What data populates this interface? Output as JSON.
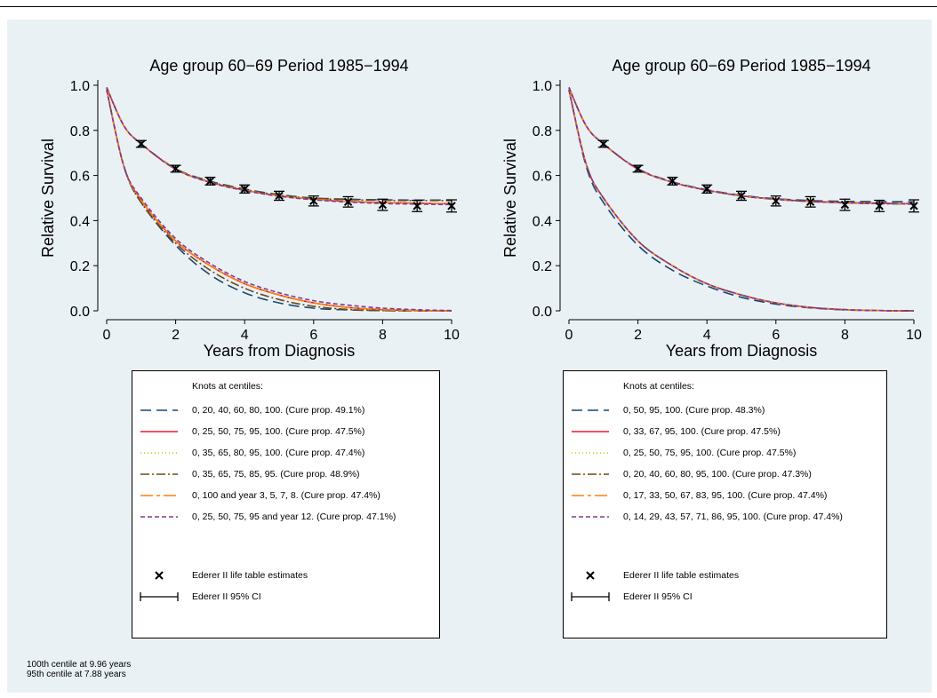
{
  "chart_data": [
    {
      "type": "line",
      "title": "Age group 60−69 Period 1985−1994",
      "xlabel": "Years from Diagnosis",
      "ylabel": "Relative Survival",
      "xlim": [
        0,
        10
      ],
      "ylim": [
        0,
        1
      ],
      "xticks": [
        "0",
        "2",
        "4",
        "6",
        "8",
        "10"
      ],
      "yticks": [
        "0.0",
        "0.2",
        "0.4",
        "0.6",
        "0.8",
        "1.0"
      ],
      "grid": false,
      "legend_header": "Knots at centiles:",
      "legend_position": "below",
      "series": [
        {
          "name": "0, 20, 40, 60, 80, 100. (Cure prop. 49.1%)",
          "color": "#1a476f",
          "dash": "12,6",
          "relative_survival": {
            "x": [
              0,
              0.5,
              1,
              2,
              3,
              4,
              5,
              6,
              7,
              8,
              9,
              10
            ],
            "y": [
              0.99,
              0.82,
              0.74,
              0.63,
              0.575,
              0.54,
              0.515,
              0.5,
              0.495,
              0.492,
              0.491,
              0.491
            ]
          },
          "cure_fraction_curve": {
            "x": [
              0,
              0.5,
              1,
              2,
              3,
              4,
              5,
              6,
              7,
              8,
              9,
              10
            ],
            "y": [
              0.98,
              0.64,
              0.48,
              0.29,
              0.16,
              0.08,
              0.035,
              0.012,
              0.004,
              0.001,
              0,
              0
            ]
          }
        },
        {
          "name": "0, 25, 50, 75, 95, 100. (Cure prop. 47.5%)",
          "color": "#e8182c",
          "dash": "none",
          "relative_survival": {
            "x": [
              0,
              0.5,
              1,
              2,
              3,
              4,
              5,
              6,
              7,
              8,
              9,
              10
            ],
            "y": [
              0.99,
              0.82,
              0.74,
              0.628,
              0.57,
              0.535,
              0.51,
              0.495,
              0.485,
              0.48,
              0.477,
              0.475
            ]
          },
          "cure_fraction_curve": {
            "x": [
              0,
              0.5,
              1,
              2,
              3,
              4,
              5,
              6,
              7,
              8,
              9,
              10
            ],
            "y": [
              0.98,
              0.64,
              0.49,
              0.31,
              0.2,
              0.12,
              0.07,
              0.035,
              0.015,
              0.005,
              0.001,
              0
            ]
          }
        },
        {
          "name": "0, 35, 65, 80, 95, 100. (Cure prop. 47.4%)",
          "color": "#c8c800",
          "dash": "1,3",
          "relative_survival": {
            "x": [
              0,
              0.5,
              1,
              2,
              3,
              4,
              5,
              6,
              7,
              8,
              9,
              10
            ],
            "y": [
              0.99,
              0.82,
              0.74,
              0.628,
              0.57,
              0.535,
              0.51,
              0.495,
              0.485,
              0.479,
              0.476,
              0.474
            ]
          },
          "cure_fraction_curve": {
            "x": [
              0,
              0.5,
              1,
              2,
              3,
              4,
              5,
              6,
              7,
              8,
              9,
              10
            ],
            "y": [
              0.98,
              0.64,
              0.49,
              0.31,
              0.2,
              0.12,
              0.07,
              0.035,
              0.015,
              0.005,
              0.001,
              0
            ]
          }
        },
        {
          "name": "0, 35, 65, 75, 85, 95. (Cure prop. 48.9%)",
          "color": "#6b4a1a",
          "dash": "10,3,2,3",
          "relative_survival": {
            "x": [
              0,
              0.5,
              1,
              2,
              3,
              4,
              5,
              6,
              7,
              8,
              9,
              10
            ],
            "y": [
              0.99,
              0.82,
              0.74,
              0.63,
              0.572,
              0.538,
              0.513,
              0.499,
              0.493,
              0.49,
              0.489,
              0.489
            ]
          },
          "cure_fraction_curve": {
            "x": [
              0,
              0.5,
              1,
              2,
              3,
              4,
              5,
              6,
              7,
              8,
              9,
              10
            ],
            "y": [
              0.98,
              0.64,
              0.48,
              0.3,
              0.18,
              0.1,
              0.05,
              0.02,
              0.006,
              0.001,
              0,
              0
            ]
          }
        },
        {
          "name": "0, 100 and year 3, 5, 7, 8. (Cure prop. 47.4%)",
          "color": "#ff7f0e",
          "dash": "14,4,4,4",
          "relative_survival": {
            "x": [
              0,
              0.5,
              1,
              2,
              3,
              4,
              5,
              6,
              7,
              8,
              9,
              10
            ],
            "y": [
              0.99,
              0.82,
              0.74,
              0.628,
              0.57,
              0.535,
              0.51,
              0.495,
              0.485,
              0.479,
              0.476,
              0.474
            ]
          },
          "cure_fraction_curve": {
            "x": [
              0,
              0.5,
              1,
              2,
              3,
              4,
              5,
              6,
              7,
              8,
              9,
              10
            ],
            "y": [
              0.98,
              0.64,
              0.49,
              0.31,
              0.2,
              0.12,
              0.07,
              0.035,
              0.015,
              0.005,
              0.001,
              0
            ]
          }
        },
        {
          "name": "0, 25, 50, 75, 95 and year 12. (Cure prop. 47.1%)",
          "color": "#7d3c98",
          "dash": "5,3",
          "relative_survival": {
            "x": [
              0,
              0.5,
              1,
              2,
              3,
              4,
              5,
              6,
              7,
              8,
              9,
              10
            ],
            "y": [
              0.99,
              0.82,
              0.74,
              0.627,
              0.569,
              0.533,
              0.508,
              0.492,
              0.482,
              0.476,
              0.473,
              0.471
            ]
          },
          "cure_fraction_curve": {
            "x": [
              0,
              0.5,
              1,
              2,
              3,
              4,
              5,
              6,
              7,
              8,
              9,
              10
            ],
            "y": [
              0.98,
              0.64,
              0.5,
              0.32,
              0.21,
              0.13,
              0.08,
              0.045,
              0.025,
              0.012,
              0.005,
              0.001
            ]
          }
        }
      ],
      "ederer": {
        "estimate_label": "Ederer II life table estimates",
        "ci_label": "Ederer II 95% CI",
        "x": [
          1,
          2,
          3,
          4,
          5,
          6,
          7,
          8,
          9,
          10
        ],
        "y": [
          0.74,
          0.63,
          0.575,
          0.54,
          0.51,
          0.487,
          0.483,
          0.47,
          0.465,
          0.465
        ],
        "lower": [
          0.725,
          0.615,
          0.558,
          0.522,
          0.49,
          0.465,
          0.46,
          0.445,
          0.44,
          0.438
        ],
        "upper": [
          0.755,
          0.645,
          0.592,
          0.558,
          0.53,
          0.509,
          0.506,
          0.495,
          0.49,
          0.492
        ]
      }
    },
    {
      "type": "line",
      "title": "Age group 60−69 Period 1985−1994",
      "xlabel": "Years from Diagnosis",
      "ylabel": "Relative Survival",
      "xlim": [
        0,
        10
      ],
      "ylim": [
        0,
        1
      ],
      "xticks": [
        "0",
        "2",
        "4",
        "6",
        "8",
        "10"
      ],
      "yticks": [
        "0.0",
        "0.2",
        "0.4",
        "0.6",
        "0.8",
        "1.0"
      ],
      "grid": false,
      "legend_header": "Knots at centiles:",
      "legend_position": "below",
      "series": [
        {
          "name": "0, 50, 95, 100. (Cure prop. 48.3%)",
          "color": "#1a476f",
          "dash": "12,6",
          "relative_survival": {
            "x": [
              0,
              0.5,
              1,
              2,
              3,
              4,
              5,
              6,
              7,
              8,
              9,
              10
            ],
            "y": [
              0.99,
              0.82,
              0.74,
              0.63,
              0.572,
              0.537,
              0.512,
              0.497,
              0.489,
              0.485,
              0.484,
              0.483
            ]
          },
          "cure_fraction_curve": {
            "x": [
              0,
              0.5,
              1,
              2,
              3,
              4,
              5,
              6,
              7,
              8,
              9,
              10
            ],
            "y": [
              0.98,
              0.64,
              0.48,
              0.29,
              0.18,
              0.11,
              0.06,
              0.03,
              0.013,
              0.004,
              0.001,
              0
            ]
          }
        },
        {
          "name": "0, 33, 67, 95, 100. (Cure prop. 47.5%)",
          "color": "#e8182c",
          "dash": "none",
          "relative_survival": {
            "x": [
              0,
              0.5,
              1,
              2,
              3,
              4,
              5,
              6,
              7,
              8,
              9,
              10
            ],
            "y": [
              0.99,
              0.82,
              0.74,
              0.628,
              0.57,
              0.535,
              0.51,
              0.495,
              0.485,
              0.48,
              0.477,
              0.475
            ]
          },
          "cure_fraction_curve": {
            "x": [
              0,
              0.5,
              1,
              2,
              3,
              4,
              5,
              6,
              7,
              8,
              9,
              10
            ],
            "y": [
              0.98,
              0.65,
              0.5,
              0.31,
              0.2,
              0.12,
              0.07,
              0.035,
              0.015,
              0.005,
              0.001,
              0
            ]
          }
        },
        {
          "name": "0, 25, 50, 75, 95, 100. (Cure prop. 47.5%)",
          "color": "#c8c800",
          "dash": "1,3",
          "relative_survival": {
            "x": [
              0,
              0.5,
              1,
              2,
              3,
              4,
              5,
              6,
              7,
              8,
              9,
              10
            ],
            "y": [
              0.99,
              0.82,
              0.74,
              0.628,
              0.57,
              0.535,
              0.51,
              0.495,
              0.485,
              0.48,
              0.477,
              0.475
            ]
          },
          "cure_fraction_curve": {
            "x": [
              0,
              0.5,
              1,
              2,
              3,
              4,
              5,
              6,
              7,
              8,
              9,
              10
            ],
            "y": [
              0.98,
              0.65,
              0.5,
              0.31,
              0.2,
              0.12,
              0.07,
              0.035,
              0.015,
              0.005,
              0.001,
              0
            ]
          }
        },
        {
          "name": "0, 20, 40, 60, 80, 95, 100. (Cure prop. 47.3%)",
          "color": "#6b4a1a",
          "dash": "10,3,2,3",
          "relative_survival": {
            "x": [
              0,
              0.5,
              1,
              2,
              3,
              4,
              5,
              6,
              7,
              8,
              9,
              10
            ],
            "y": [
              0.99,
              0.82,
              0.74,
              0.628,
              0.57,
              0.534,
              0.509,
              0.494,
              0.484,
              0.478,
              0.475,
              0.473
            ]
          },
          "cure_fraction_curve": {
            "x": [
              0,
              0.5,
              1,
              2,
              3,
              4,
              5,
              6,
              7,
              8,
              9,
              10
            ],
            "y": [
              0.98,
              0.65,
              0.5,
              0.31,
              0.2,
              0.12,
              0.07,
              0.035,
              0.015,
              0.005,
              0.001,
              0
            ]
          }
        },
        {
          "name": "0, 17, 33, 50, 67, 83, 95, 100. (Cure prop. 47.4%)",
          "color": "#ff7f0e",
          "dash": "14,4,4,4",
          "relative_survival": {
            "x": [
              0,
              0.5,
              1,
              2,
              3,
              4,
              5,
              6,
              7,
              8,
              9,
              10
            ],
            "y": [
              0.99,
              0.82,
              0.74,
              0.628,
              0.57,
              0.535,
              0.51,
              0.495,
              0.485,
              0.479,
              0.476,
              0.474
            ]
          },
          "cure_fraction_curve": {
            "x": [
              0,
              0.5,
              1,
              2,
              3,
              4,
              5,
              6,
              7,
              8,
              9,
              10
            ],
            "y": [
              0.98,
              0.65,
              0.5,
              0.31,
              0.2,
              0.12,
              0.07,
              0.035,
              0.015,
              0.005,
              0.001,
              0
            ]
          }
        },
        {
          "name": "0, 14, 29, 43, 57, 71, 86, 95, 100. (Cure prop. 47.4%)",
          "color": "#7d3c98",
          "dash": "5,3",
          "relative_survival": {
            "x": [
              0,
              0.5,
              1,
              2,
              3,
              4,
              5,
              6,
              7,
              8,
              9,
              10
            ],
            "y": [
              0.99,
              0.82,
              0.74,
              0.628,
              0.57,
              0.535,
              0.51,
              0.495,
              0.485,
              0.479,
              0.476,
              0.474
            ]
          },
          "cure_fraction_curve": {
            "x": [
              0,
              0.5,
              1,
              2,
              3,
              4,
              5,
              6,
              7,
              8,
              9,
              10
            ],
            "y": [
              0.98,
              0.65,
              0.5,
              0.31,
              0.2,
              0.12,
              0.07,
              0.035,
              0.015,
              0.005,
              0.001,
              0
            ]
          }
        }
      ],
      "ederer": {
        "estimate_label": "Ederer II life table estimates",
        "ci_label": "Ederer II 95% CI",
        "x": [
          1,
          2,
          3,
          4,
          5,
          6,
          7,
          8,
          9,
          10
        ],
        "y": [
          0.74,
          0.63,
          0.575,
          0.54,
          0.51,
          0.487,
          0.483,
          0.47,
          0.465,
          0.465
        ],
        "lower": [
          0.725,
          0.615,
          0.558,
          0.522,
          0.49,
          0.465,
          0.46,
          0.445,
          0.44,
          0.438
        ],
        "upper": [
          0.755,
          0.645,
          0.592,
          0.558,
          0.53,
          0.509,
          0.506,
          0.495,
          0.49,
          0.492
        ]
      }
    }
  ],
  "notes": {
    "line1": "100th centile at 9.96 years",
    "line2": "95th centile at 7.88 years"
  }
}
